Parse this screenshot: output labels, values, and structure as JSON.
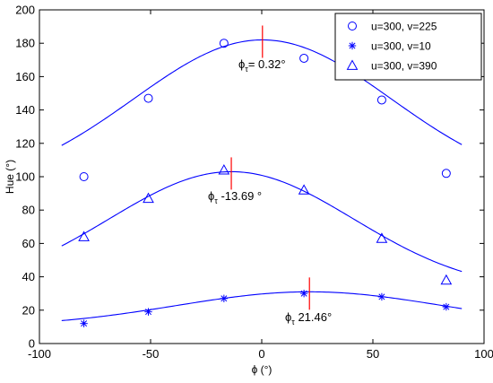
{
  "chart_data": {
    "type": "scatter",
    "title": "",
    "xlabel": "ϕ (°)",
    "ylabel": "Hue (°)",
    "xlim": [
      -100,
      100
    ],
    "ylim": [
      0,
      200
    ],
    "xticks": [
      -100,
      -50,
      0,
      50,
      100
    ],
    "yticks": [
      0,
      20,
      40,
      60,
      80,
      100,
      120,
      140,
      160,
      180,
      200
    ],
    "grid": false,
    "legend_position": "top-right",
    "colors": {
      "series": "#0000ff",
      "peak_marker": "#ff0000",
      "axes": "#000000"
    },
    "series": [
      {
        "name": "u=300, v=225",
        "marker": "circle",
        "points": [
          [
            -80,
            100
          ],
          [
            -51,
            147
          ],
          [
            -17,
            180
          ],
          [
            19,
            171
          ],
          [
            54,
            146
          ],
          [
            83,
            102
          ]
        ],
        "fit": {
          "amplitude": 90,
          "center": 0.32,
          "sigma": 58,
          "baseline": 92
        },
        "peak": {
          "x": 0.32,
          "y": 182,
          "label_main": "ϕ",
          "label_sub": "τ",
          "label_value": "= 0.32°"
        }
      },
      {
        "name": "u=300, v=10",
        "marker": "star",
        "points": [
          [
            -80,
            12
          ],
          [
            -51,
            19
          ],
          [
            -17,
            27
          ],
          [
            19,
            30
          ],
          [
            54,
            28
          ],
          [
            83,
            22
          ]
        ],
        "fit": {
          "amplitude": 21,
          "center": 21.46,
          "sigma": 60,
          "baseline": 10
        },
        "peak": {
          "x": 21.46,
          "y": 31,
          "label_main": "ϕ",
          "label_sub": "τ",
          "label_value": " 21.46°"
        }
      },
      {
        "name": "u=300, v=390",
        "marker": "triangle",
        "points": [
          [
            -80,
            64
          ],
          [
            -51,
            87
          ],
          [
            -17,
            104
          ],
          [
            19,
            92
          ],
          [
            54,
            63
          ],
          [
            83,
            38
          ]
        ],
        "fit": {
          "amplitude": 72,
          "center": -13.69,
          "sigma": 55,
          "baseline": 31
        },
        "peak": {
          "x": -13.69,
          "y": 103,
          "label_main": "ϕ",
          "label_sub": "τ",
          "label_value": " -13.69 °"
        }
      }
    ]
  }
}
